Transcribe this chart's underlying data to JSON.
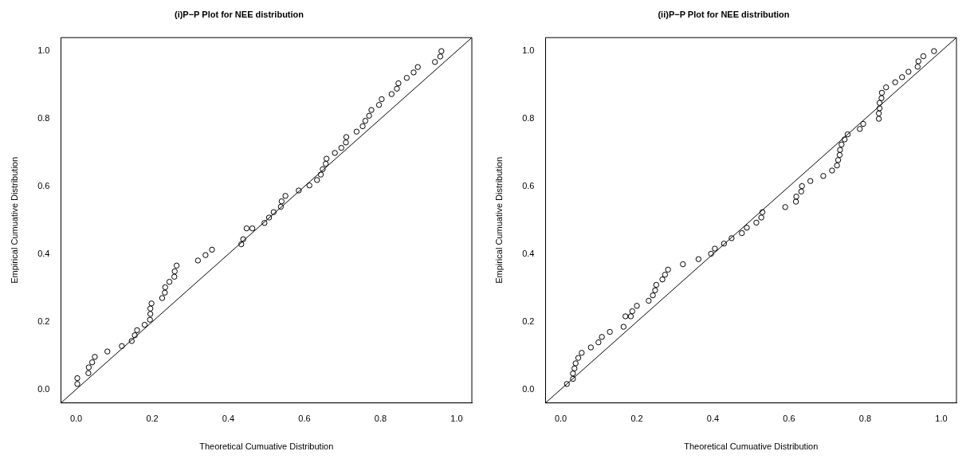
{
  "chart_data": [
    {
      "type": "scatter",
      "title": "(i)P−P Plot for NEE distribution",
      "xlabel": "Theoretical Cumuative Distribution",
      "ylabel": "Empirical Cumuative Distribution",
      "xlim": [
        -0.04,
        1.04
      ],
      "ylim": [
        -0.04,
        1.04
      ],
      "xticks": [
        {
          "value": 0,
          "label": "0.0"
        },
        {
          "value": 0.2,
          "label": "0.2"
        },
        {
          "value": 0.4,
          "label": "0.4"
        },
        {
          "value": 0.6,
          "label": "0.6"
        },
        {
          "value": 0.8,
          "label": "0.8"
        },
        {
          "value": 1,
          "label": "1.0"
        }
      ],
      "yticks": [
        {
          "value": 0,
          "label": "0.0"
        },
        {
          "value": 0.2,
          "label": "0.2"
        },
        {
          "value": 0.4,
          "label": "0.4"
        },
        {
          "value": 0.6,
          "label": "0.6"
        },
        {
          "value": 0.8,
          "label": "0.8"
        },
        {
          "value": 1,
          "label": "1.0"
        }
      ],
      "grid": false,
      "legend": false,
      "series": [
        {
          "marker": "circle",
          "color": "#000000",
          "x": [
            0.003,
            0.003,
            0.032,
            0.033,
            0.042,
            0.049,
            0.082,
            0.12,
            0.146,
            0.154,
            0.16,
            0.18,
            0.194,
            0.195,
            0.195,
            0.198,
            0.226,
            0.233,
            0.234,
            0.245,
            0.258,
            0.259,
            0.264,
            0.32,
            0.34,
            0.357,
            0.434,
            0.439,
            0.448,
            0.463,
            0.495,
            0.507,
            0.519,
            0.538,
            0.54,
            0.55,
            0.585,
            0.613,
            0.633,
            0.643,
            0.648,
            0.656,
            0.658,
            0.68,
            0.697,
            0.709,
            0.71,
            0.737,
            0.753,
            0.76,
            0.77,
            0.776,
            0.796,
            0.803,
            0.829,
            0.843,
            0.847,
            0.869,
            0.887,
            0.898,
            0.943,
            0.957,
            0.96
          ],
          "values": [
            0.016,
            0.033,
            0.048,
            0.065,
            0.08,
            0.096,
            0.112,
            0.128,
            0.143,
            0.16,
            0.175,
            0.191,
            0.206,
            0.223,
            0.239,
            0.254,
            0.27,
            0.286,
            0.302,
            0.318,
            0.333,
            0.349,
            0.366,
            0.381,
            0.397,
            0.413,
            0.429,
            0.444,
            0.476,
            0.476,
            0.492,
            0.508,
            0.524,
            0.54,
            0.556,
            0.572,
            0.588,
            0.603,
            0.619,
            0.635,
            0.651,
            0.667,
            0.682,
            0.699,
            0.714,
            0.73,
            0.746,
            0.762,
            0.778,
            0.794,
            0.809,
            0.826,
            0.841,
            0.858,
            0.873,
            0.889,
            0.905,
            0.921,
            0.937,
            0.953,
            0.968,
            0.984,
            1.0
          ]
        },
        {
          "type": "line",
          "marker": "none",
          "color": "#000000",
          "x": [
            -0.04,
            1.04
          ],
          "values": [
            -0.04,
            1.04
          ]
        }
      ]
    },
    {
      "type": "scatter",
      "title": "(ii)P−P Plot for NEE distribution",
      "xlabel": "Theoretical Cumuative Distribution",
      "ylabel": "Empirical Cumuative Distribution",
      "xlim": [
        -0.04,
        1.04
      ],
      "ylim": [
        -0.04,
        1.04
      ],
      "xticks": [
        {
          "value": 0,
          "label": "0.0"
        },
        {
          "value": 0.2,
          "label": "0.2"
        },
        {
          "value": 0.4,
          "label": "0.4"
        },
        {
          "value": 0.6,
          "label": "0.6"
        },
        {
          "value": 0.8,
          "label": "0.8"
        },
        {
          "value": 1,
          "label": "1.0"
        }
      ],
      "yticks": [
        {
          "value": 0,
          "label": "0.0"
        },
        {
          "value": 0.2,
          "label": "0.2"
        },
        {
          "value": 0.4,
          "label": "0.4"
        },
        {
          "value": 0.6,
          "label": "0.6"
        },
        {
          "value": 0.8,
          "label": "0.8"
        },
        {
          "value": 1,
          "label": "1.0"
        }
      ],
      "grid": false,
      "legend": false,
      "series": [
        {
          "marker": "circle",
          "color": "#000000",
          "x": [
            0.016,
            0.032,
            0.032,
            0.036,
            0.039,
            0.046,
            0.055,
            0.079,
            0.099,
            0.108,
            0.129,
            0.165,
            0.17,
            0.184,
            0.188,
            0.2,
            0.231,
            0.242,
            0.248,
            0.251,
            0.267,
            0.274,
            0.282,
            0.321,
            0.362,
            0.395,
            0.405,
            0.429,
            0.449,
            0.476,
            0.489,
            0.514,
            0.527,
            0.53,
            0.59,
            0.618,
            0.619,
            0.632,
            0.634,
            0.656,
            0.69,
            0.713,
            0.726,
            0.729,
            0.733,
            0.734,
            0.738,
            0.746,
            0.754,
            0.786,
            0.795,
            0.836,
            0.836,
            0.838,
            0.838,
            0.843,
            0.844,
            0.855,
            0.879,
            0.897,
            0.914,
            0.938,
            0.94,
            0.953,
            0.981
          ],
          "values": [
            0.016,
            0.031,
            0.047,
            0.062,
            0.077,
            0.093,
            0.108,
            0.124,
            0.139,
            0.155,
            0.17,
            0.185,
            0.216,
            0.216,
            0.231,
            0.247,
            0.262,
            0.278,
            0.293,
            0.309,
            0.325,
            0.339,
            0.354,
            0.37,
            0.385,
            0.401,
            0.416,
            0.431,
            0.447,
            0.462,
            0.478,
            0.493,
            0.508,
            0.524,
            0.539,
            0.555,
            0.57,
            0.585,
            0.601,
            0.616,
            0.631,
            0.647,
            0.662,
            0.678,
            0.693,
            0.708,
            0.724,
            0.739,
            0.754,
            0.77,
            0.785,
            0.8,
            0.816,
            0.831,
            0.847,
            0.861,
            0.877,
            0.893,
            0.908,
            0.923,
            0.939,
            0.954,
            0.97,
            0.985,
            1.0
          ]
        },
        {
          "type": "line",
          "marker": "none",
          "color": "#000000",
          "x": [
            -0.04,
            1.04
          ],
          "values": [
            -0.04,
            1.04
          ]
        }
      ]
    }
  ]
}
